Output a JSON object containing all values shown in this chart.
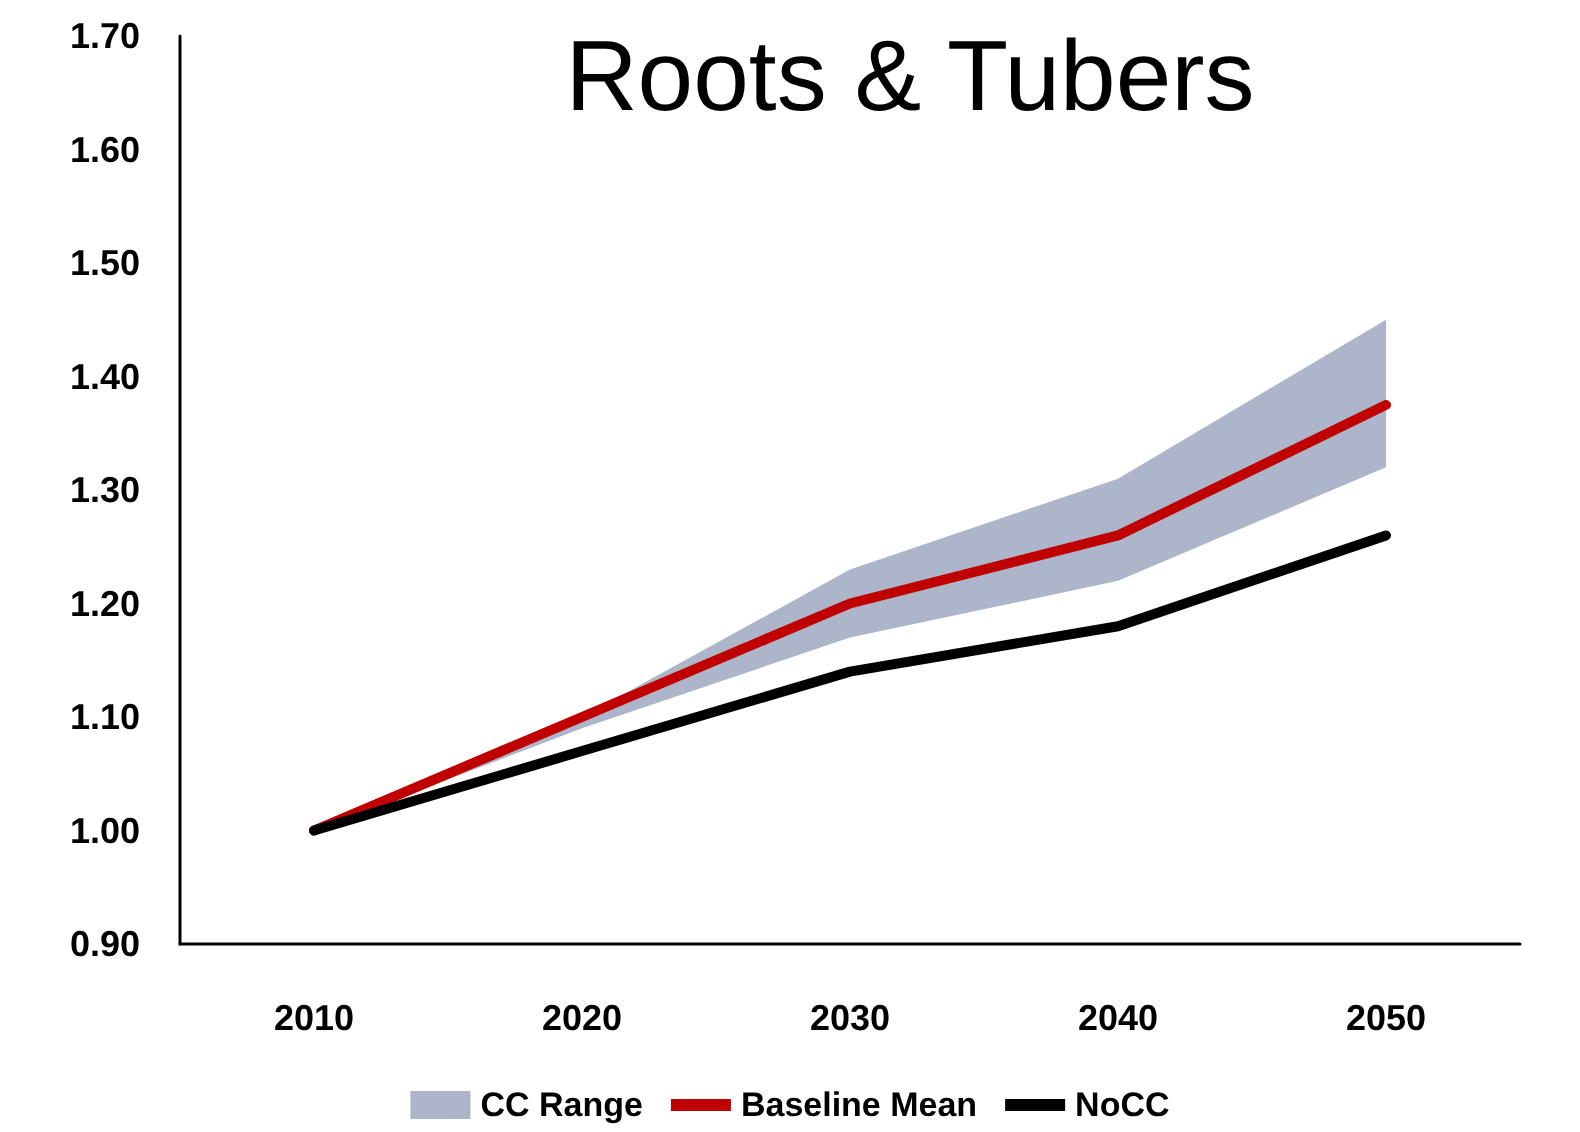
{
  "chart_data": {
    "type": "line",
    "title": "Roots & Tubers",
    "categories": [
      "2010",
      "2020",
      "2030",
      "2040",
      "2050"
    ],
    "series": [
      {
        "name": "CC Range",
        "type": "area",
        "color": "#acb5c9",
        "values": [
          null,
          null,
          null,
          null,
          null
        ],
        "lower": [
          1.0,
          1.09,
          1.17,
          1.22,
          1.32
        ],
        "upper": [
          1.0,
          1.1,
          1.23,
          1.31,
          1.45
        ]
      },
      {
        "name": "Baseline Mean",
        "color": "#c00000",
        "values": [
          1.0,
          1.1,
          1.2,
          1.26,
          1.375
        ]
      },
      {
        "name": "NoCC",
        "color": "#000000",
        "values": [
          1.0,
          1.07,
          1.14,
          1.18,
          1.26
        ]
      }
    ],
    "ylim": [
      0.9,
      1.7
    ],
    "yticks": [
      {
        "value": 0.9,
        "label": "0.90"
      },
      {
        "value": 1.0,
        "label": "1.00"
      },
      {
        "value": 1.1,
        "label": "1.10"
      },
      {
        "value": 1.2,
        "label": "1.20"
      },
      {
        "value": 1.3,
        "label": "1.30"
      },
      {
        "value": 1.4,
        "label": "1.40"
      },
      {
        "value": 1.5,
        "label": "1.50"
      },
      {
        "value": 1.6,
        "label": "1.60"
      },
      {
        "value": 1.7,
        "label": "1.70"
      }
    ],
    "grid": false,
    "legend": "bottom",
    "marker": "none",
    "line_style": "solid"
  }
}
